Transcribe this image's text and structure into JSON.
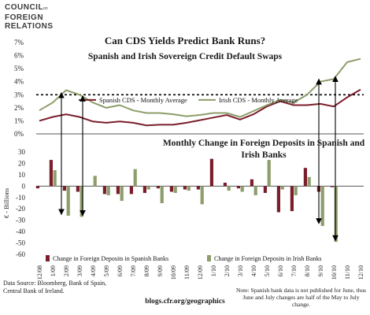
{
  "logo": {
    "line1": "COUNCIL",
    "line1_small": "on",
    "line2": "FOREIGN",
    "line3": "RELATIONS"
  },
  "title": "Can CDS Yields Predict Bank Runs?",
  "source": "Data Source: Bloomberg, Bank of Spain, Central Bank of Ireland.",
  "url": "blogs.cfr.org/geographics",
  "note": "Note: Spanish bank data is not published for June, thus June and July changes are half of the May to July change.",
  "colors": {
    "spanish": "#7b1e2c",
    "irish": "#8d9d6b",
    "arrows": "#000000"
  },
  "chart_data": [
    {
      "type": "line",
      "title": "Spanish and Irish Sovereign Credit Default Swaps",
      "x": [
        "12/08",
        "1/09",
        "2/09",
        "3/09",
        "4/09",
        "5/09",
        "6/09",
        "7/09",
        "8/09",
        "9/09",
        "10/09",
        "11/09",
        "12/09",
        "1/10",
        "2/10",
        "3/10",
        "4/10",
        "5/10",
        "6/10",
        "7/10",
        "8/10",
        "9/10",
        "10/10",
        "11/10",
        "12/10"
      ],
      "ylim": [
        0,
        7
      ],
      "yticks": [
        "0%",
        "1%",
        "2%",
        "3%",
        "4%",
        "5%",
        "6%",
        "7%"
      ],
      "reference_line": 3,
      "series": [
        {
          "name": "Spanish CDS - Monthly Average",
          "values": [
            1.0,
            1.3,
            1.5,
            1.3,
            0.95,
            0.85,
            0.95,
            0.85,
            0.65,
            0.7,
            0.7,
            0.85,
            1.05,
            1.25,
            1.45,
            1.1,
            1.5,
            2.1,
            2.5,
            2.2,
            2.2,
            2.3,
            2.1,
            2.8,
            3.4
          ]
        },
        {
          "name": "Irish CDS - Monthly Average",
          "values": [
            1.8,
            2.4,
            3.35,
            3.0,
            2.4,
            2.0,
            2.2,
            1.8,
            1.6,
            1.6,
            1.5,
            1.35,
            1.45,
            1.6,
            1.6,
            1.3,
            1.75,
            2.2,
            2.6,
            2.4,
            3.0,
            4.0,
            4.2,
            5.5,
            5.75
          ]
        }
      ]
    },
    {
      "type": "bar",
      "title": "Monthly Change in Foreign Deposits in Spanish and Irish Banks",
      "ylabel": "€ - Billions",
      "x": [
        "12/08",
        "1/09",
        "2/09",
        "3/09",
        "4/09",
        "5/09",
        "6/09",
        "7/09",
        "8/09",
        "9/09",
        "10/09",
        "11/09",
        "12/09",
        "1/10",
        "2/10",
        "3/10",
        "4/10",
        "5/10",
        "6/10",
        "7/10",
        "8/10",
        "9/10",
        "10/10",
        "11/10",
        "12/10"
      ],
      "ylim": [
        -60,
        30
      ],
      "yticks": [
        "-60",
        "-50",
        "-40",
        "-30",
        "-20",
        "-10",
        "0",
        "10",
        "20",
        "30"
      ],
      "series": [
        {
          "name": "Change in  Foreign Deposits  in Spanish Banks",
          "values": [
            -2,
            23,
            -4,
            -5,
            null,
            -7,
            -7,
            -7,
            -6,
            -2,
            -5,
            -3,
            -3,
            24,
            3,
            -2,
            6,
            -6,
            -23,
            -22,
            16,
            -5,
            -1,
            null,
            null
          ]
        },
        {
          "name": "Change in  Foreign Deposits  in Irish Banks",
          "values": [
            null,
            14,
            -26,
            -27,
            9,
            -8,
            -13,
            15,
            -3,
            -15,
            -6,
            -4,
            -16,
            null,
            -4,
            -5,
            -8,
            23,
            -3,
            -8,
            8,
            -35,
            -49,
            null,
            null
          ]
        }
      ]
    }
  ]
}
